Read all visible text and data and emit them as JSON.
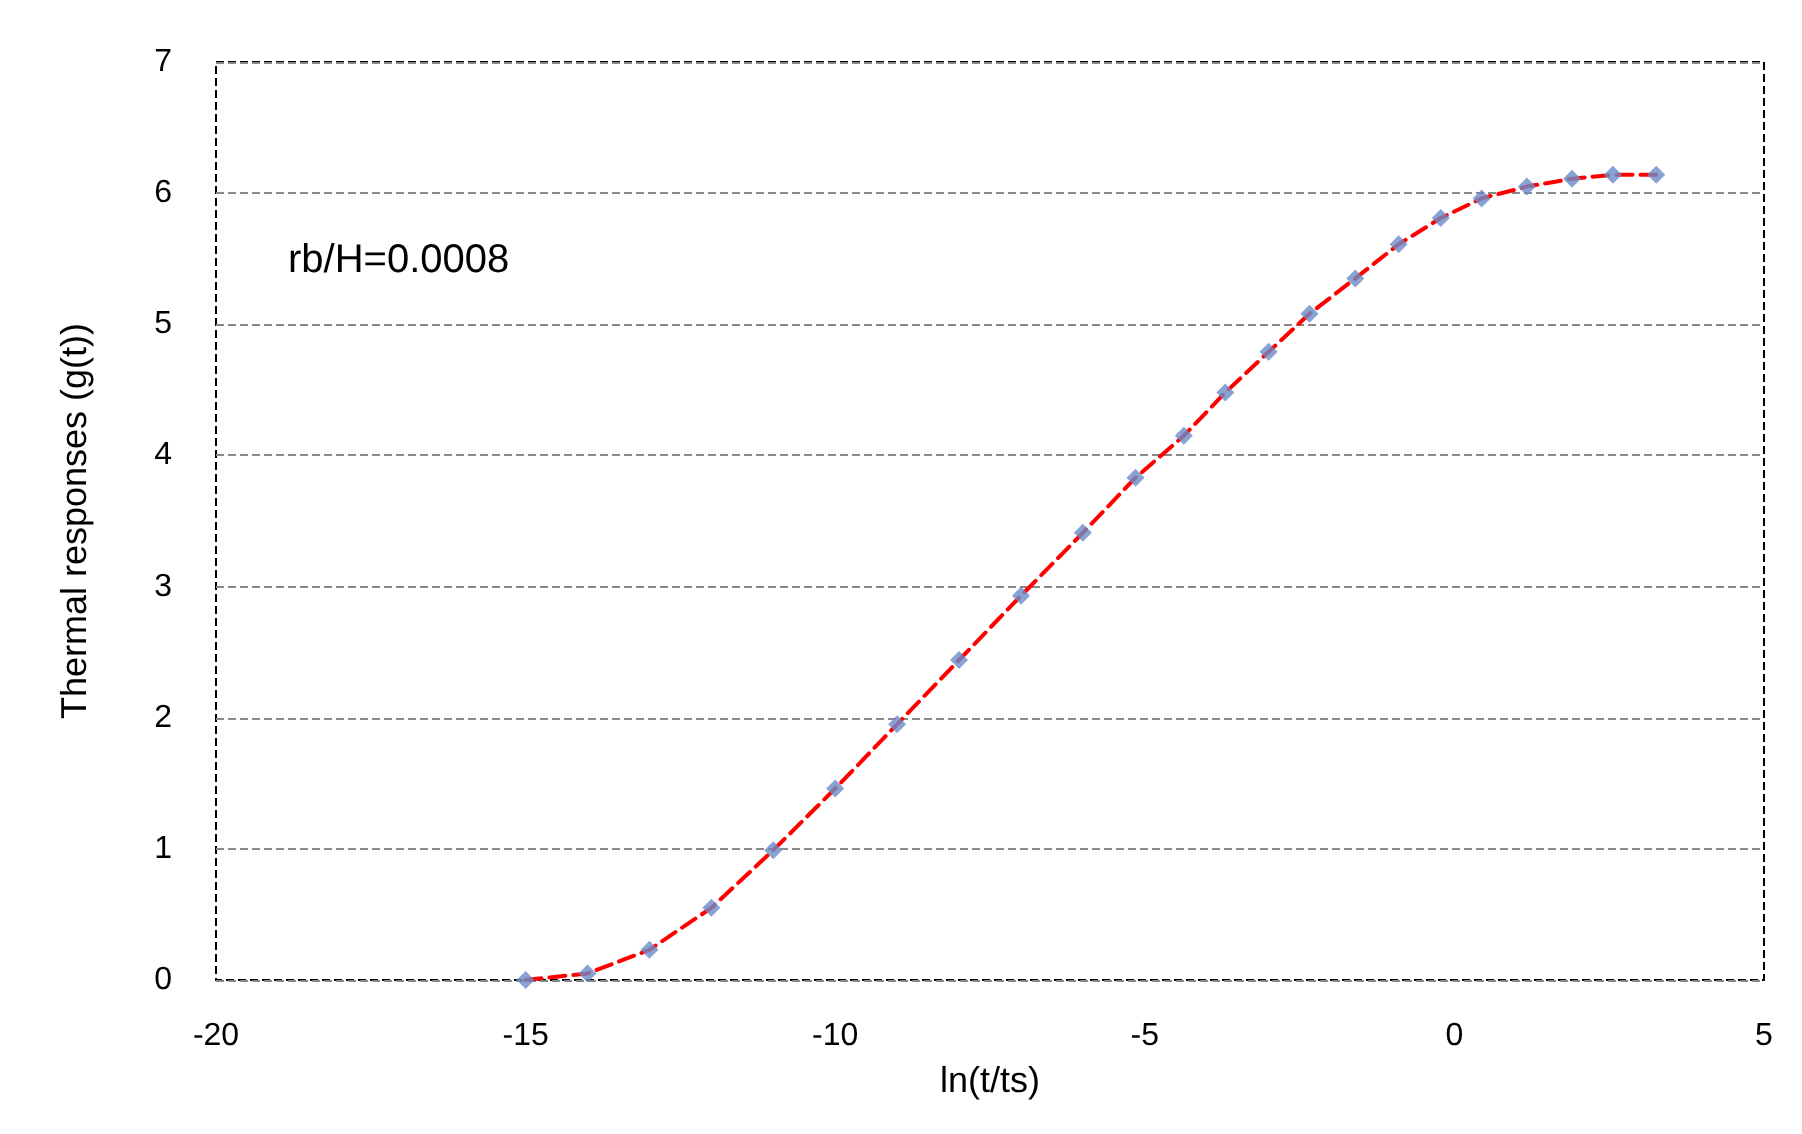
{
  "chart_data": {
    "type": "scatter",
    "xlabel": "ln(t/ts)",
    "ylabel": "Thermal responses (g(t))",
    "annotations": [
      "rb/H=0.0008"
    ],
    "x": [
      -15,
      -14,
      -13,
      -12,
      -11,
      -10,
      -9,
      -8,
      -7,
      -6,
      -5.15,
      -4.37,
      -3.7,
      -3,
      -2.34,
      -1.6,
      -0.9,
      -0.22,
      0.44,
      1.17,
      1.9,
      2.56,
      3.26
    ],
    "series": [
      {
        "type": "line",
        "color": "#ff0000",
        "marker": "none",
        "line_style": "dashed",
        "values": [
          0,
          0.05,
          0.23,
          0.55,
          0.99,
          1.46,
          1.95,
          2.44,
          2.93,
          3.41,
          3.83,
          4.15,
          4.48,
          4.79,
          5.08,
          5.35,
          5.61,
          5.81,
          5.96,
          6.05,
          6.11,
          6.14,
          6.14
        ]
      },
      {
        "color": "#6a8cc8",
        "marker": "diamond",
        "values": [
          0,
          0.05,
          0.23,
          0.55,
          0.99,
          1.46,
          1.95,
          2.44,
          2.93,
          3.41,
          3.83,
          4.15,
          4.48,
          4.79,
          5.08,
          5.35,
          5.61,
          5.81,
          5.96,
          6.05,
          6.11,
          6.14,
          6.14
        ]
      }
    ],
    "xlim": [
      -20,
      5
    ],
    "xticks": [
      -20,
      -15,
      -10,
      -5,
      0,
      5
    ],
    "ylim": [
      0,
      7
    ],
    "yticks": [
      0,
      1,
      2,
      3,
      4,
      5,
      6,
      7
    ],
    "grid": "y"
  }
}
